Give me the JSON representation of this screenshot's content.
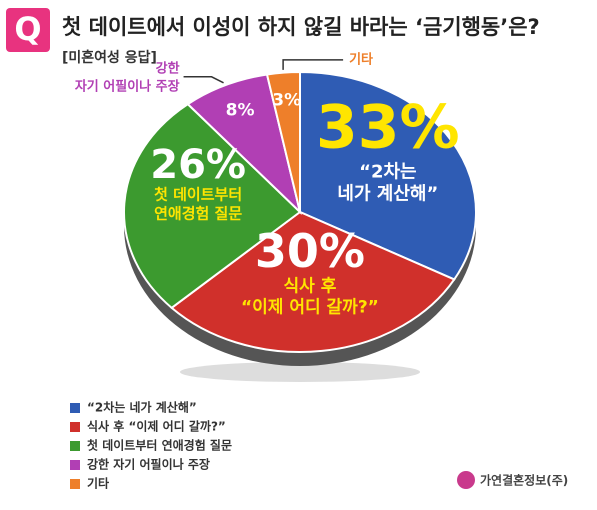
{
  "badge": "Q",
  "chart_data": {
    "type": "pie",
    "title": "첫 데이트에서 이성이 하지 않길 바라는 ‘금기행동’은?",
    "subtitle": "[미혼여성 응답]",
    "categories": [
      "“2차는 네가 계산해”",
      "식사 후 “이제 어디 갈까?”",
      "첫 데이트부터 연애경험 질문",
      "강한 자기 어필이나 주장",
      "기타"
    ],
    "slice_labels": [
      [
        "“2차는",
        "네가 계산해”"
      ],
      [
        "식사 후",
        "“이제 어디 갈까?”"
      ],
      [
        "첫 데이트부터",
        "연애경험 질문"
      ],
      [
        "강한",
        "자기 어필이나 주장"
      ],
      [
        "기타"
      ]
    ],
    "values": [
      33,
      30,
      26,
      8,
      3
    ],
    "value_labels": [
      "33%",
      "30%",
      "26%",
      "8%",
      "3%"
    ],
    "colors": [
      "#2f5cb4",
      "#d0302b",
      "#3c9a2f",
      "#b13fb4",
      "#ee7f2a"
    ]
  },
  "source": "가연결혼정보(주)"
}
